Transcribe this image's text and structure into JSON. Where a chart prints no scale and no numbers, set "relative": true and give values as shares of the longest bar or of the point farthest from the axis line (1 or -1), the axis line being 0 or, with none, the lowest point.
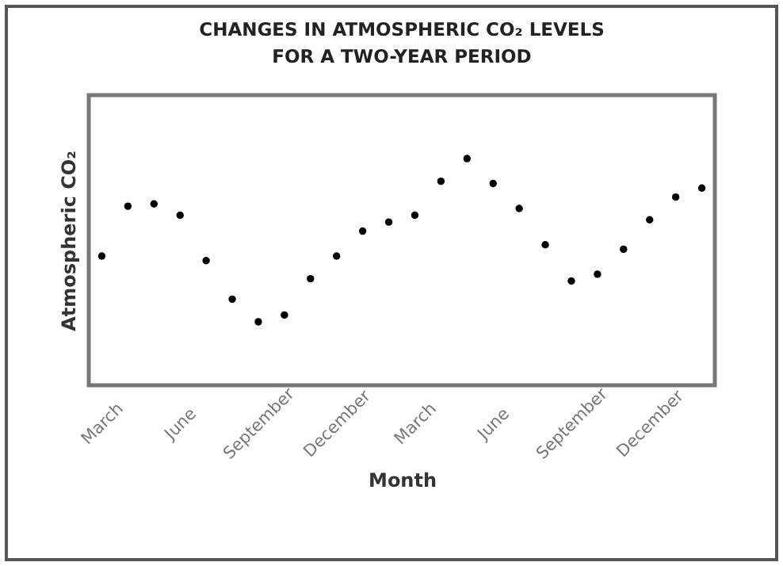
{
  "chart_data": {
    "type": "scatter",
    "title": "CHANGES IN ATMOSPHERIC CO₂ LEVELS FOR A TWO-YEAR PERIOD",
    "xlabel": "Month",
    "ylabel": "Atmospheric CO₂",
    "relative": true,
    "marker": "circle",
    "categories": [
      "March",
      null,
      null,
      "June",
      null,
      null,
      "September",
      null,
      null,
      "December",
      null,
      null,
      "March",
      null,
      null,
      "June",
      null,
      null,
      "September",
      null,
      null,
      "December",
      null,
      null
    ],
    "series": [
      {
        "color": "#000000",
        "values": [
          0.57,
          0.79,
          0.8,
          0.75,
          0.55,
          0.38,
          0.28,
          0.31,
          0.47,
          0.57,
          0.68,
          0.72,
          0.75,
          0.9,
          1,
          0.89,
          0.78,
          0.62,
          0.46,
          0.49,
          0.6,
          0.73,
          0.83,
          0.87
        ]
      }
    ]
  }
}
